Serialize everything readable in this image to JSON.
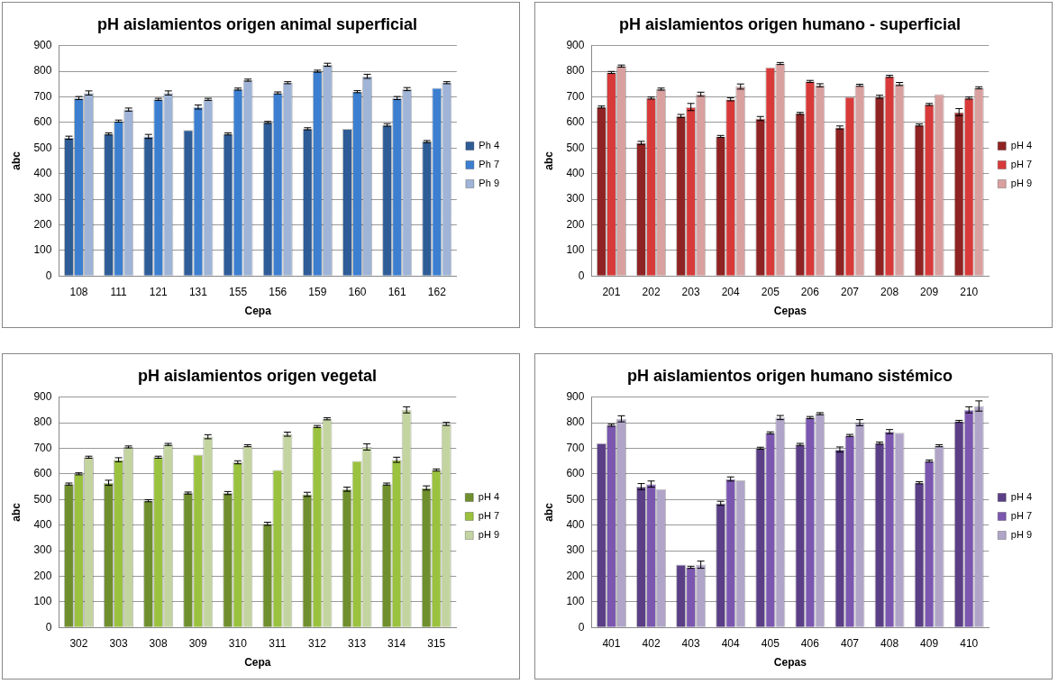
{
  "chart_data": [
    {
      "type": "bar",
      "title": "pH aislamientos origen animal superficial",
      "xlabel": "Cepa",
      "ylabel": "abc",
      "categories": [
        "108",
        "111",
        "121",
        "131",
        "155",
        "156",
        "159",
        "160",
        "161",
        "162"
      ],
      "ylim": [
        0,
        900
      ],
      "yticks": [
        0,
        100,
        200,
        300,
        400,
        500,
        600,
        700,
        800,
        900
      ],
      "grid": "y",
      "legend": "right",
      "series": [
        {
          "name": "Ph 4",
          "color": "#2e5c96",
          "values": [
            540,
            555,
            545,
            570,
            555,
            600,
            575,
            575,
            590,
            525
          ],
          "errors": [
            6,
            4,
            8,
            null,
            4,
            4,
            4,
            null,
            5,
            4
          ]
        },
        {
          "name": "Ph 7",
          "color": "#3c7fd0",
          "values": [
            695,
            605,
            690,
            660,
            730,
            715,
            800,
            720,
            695,
            735
          ],
          "errors": [
            6,
            4,
            4,
            8,
            4,
            4,
            4,
            4,
            6,
            null
          ]
        },
        {
          "name": "Ph 9",
          "color": "#9fb4d6",
          "values": [
            715,
            650,
            715,
            690,
            765,
            755,
            825,
            780,
            730,
            755
          ],
          "errors": [
            8,
            6,
            8,
            4,
            4,
            4,
            6,
            8,
            6,
            4
          ]
        }
      ]
    },
    {
      "type": "bar",
      "title": "pH aislamientos origen humano - superficial",
      "xlabel": "Cepas",
      "ylabel": "abc",
      "categories": [
        "201",
        "202",
        "203",
        "204",
        "205",
        "206",
        "207",
        "208",
        "209",
        "210"
      ],
      "ylim": [
        0,
        900
      ],
      "yticks": [
        0,
        100,
        200,
        300,
        400,
        500,
        600,
        700,
        800,
        900
      ],
      "grid": "y",
      "legend": "right",
      "series": [
        {
          "name": "pH 4",
          "color": "#8f2323",
          "values": [
            660,
            520,
            625,
            545,
            615,
            635,
            580,
            700,
            590,
            640
          ],
          "errors": [
            4,
            6,
            6,
            4,
            8,
            4,
            6,
            6,
            4,
            14
          ]
        },
        {
          "name": "pH 7",
          "color": "#d83a3a",
          "values": [
            795,
            695,
            660,
            690,
            815,
            760,
            700,
            780,
            670,
            695
          ],
          "errors": [
            4,
            4,
            14,
            6,
            null,
            4,
            null,
            4,
            4,
            4
          ]
        },
        {
          "name": "pH 9",
          "color": "#d9a0a0",
          "values": [
            820,
            730,
            710,
            740,
            830,
            745,
            745,
            750,
            710,
            735
          ],
          "errors": [
            4,
            4,
            8,
            10,
            4,
            6,
            4,
            6,
            null,
            4
          ]
        }
      ]
    },
    {
      "type": "bar",
      "title": "pH aislamientos origen vegetal",
      "xlabel": "Cepa",
      "ylabel": "abc",
      "categories": [
        "302",
        "303",
        "308",
        "309",
        "310",
        "311",
        "312",
        "313",
        "314",
        "315"
      ],
      "ylim": [
        0,
        900
      ],
      "yticks": [
        0,
        100,
        200,
        300,
        400,
        500,
        600,
        700,
        800,
        900
      ],
      "grid": "y",
      "legend": "right",
      "series": [
        {
          "name": "pH 4",
          "color": "#6f8f2e",
          "values": [
            560,
            565,
            495,
            525,
            525,
            405,
            520,
            540,
            560,
            545
          ],
          "errors": [
            4,
            10,
            4,
            4,
            6,
            6,
            8,
            8,
            4,
            8
          ]
        },
        {
          "name": "pH 7",
          "color": "#9ac23e",
          "values": [
            600,
            655,
            665,
            675,
            645,
            615,
            785,
            650,
            655,
            615
          ],
          "errors": [
            4,
            8,
            4,
            null,
            6,
            null,
            4,
            null,
            10,
            4
          ]
        },
        {
          "name": "pH 9",
          "color": "#c4d4a0",
          "values": [
            665,
            705,
            715,
            745,
            710,
            755,
            815,
            705,
            850,
            795
          ],
          "errors": [
            4,
            4,
            4,
            8,
            4,
            8,
            4,
            12,
            12,
            6
          ]
        }
      ]
    },
    {
      "type": "bar",
      "title": "pH aislamientos origen humano sistémico",
      "xlabel": "Cepas",
      "ylabel": "abc",
      "categories": [
        "401",
        "402",
        "403",
        "404",
        "405",
        "406",
        "407",
        "408",
        "409",
        "410"
      ],
      "ylim": [
        0,
        900
      ],
      "yticks": [
        0,
        100,
        200,
        300,
        400,
        500,
        600,
        700,
        800,
        900
      ],
      "grid": "y",
      "legend": "right",
      "series": [
        {
          "name": "pH 4",
          "color": "#5b3f86",
          "values": [
            720,
            550,
            245,
            485,
            700,
            715,
            695,
            720,
            565,
            805
          ],
          "errors": [
            null,
            12,
            null,
            8,
            4,
            4,
            10,
            4,
            4,
            4
          ]
        },
        {
          "name": "pH 7",
          "color": "#7b57b0",
          "values": [
            790,
            560,
            235,
            580,
            760,
            820,
            750,
            765,
            650,
            850
          ],
          "errors": [
            4,
            12,
            4,
            8,
            4,
            4,
            4,
            8,
            4,
            12
          ]
        },
        {
          "name": "pH 9",
          "color": "#b0a5c8",
          "values": [
            815,
            540,
            245,
            575,
            820,
            835,
            800,
            760,
            710,
            865
          ],
          "errors": [
            12,
            null,
            14,
            null,
            8,
            4,
            12,
            null,
            4,
            20
          ]
        }
      ]
    }
  ]
}
